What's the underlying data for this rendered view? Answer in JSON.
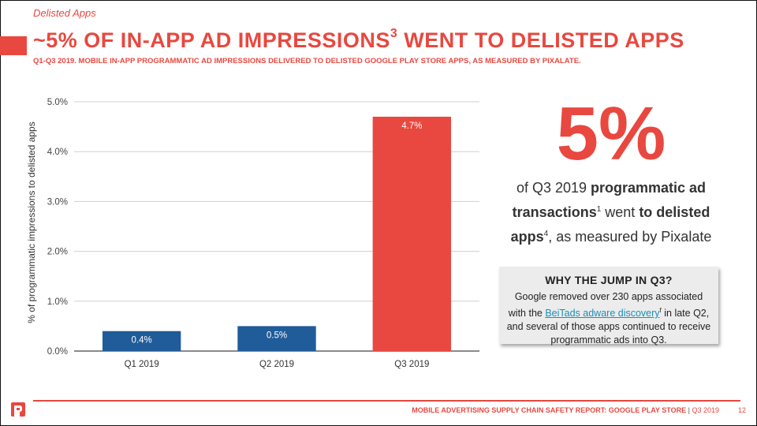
{
  "header": {
    "section": "Delisted Apps",
    "title": "~5% OF IN-APP AD IMPRESSIONS",
    "title_sup": "3",
    "title_tail": " WENT TO DELISTED APPS",
    "subtitle": "Q1-Q3 2019. MOBILE IN-APP PROGRAMMATIC AD IMPRESSIONS DELIVERED TO DELISTED GOOGLE PLAY STORE APPS, AS MEASURED BY PIXALATE."
  },
  "chart_data": {
    "type": "bar",
    "categories": [
      "Q1 2019",
      "Q2 2019",
      "Q3 2019"
    ],
    "values": [
      0.4,
      0.5,
      4.7
    ],
    "value_labels": [
      "0.4%",
      "0.5%",
      "4.7%"
    ],
    "bar_colors": [
      "#1f5c99",
      "#1f5c99",
      "#e8483f"
    ],
    "ylabel": "% of programmatic impressions to delisted apps",
    "ylim": [
      0,
      5.0
    ],
    "yticks": [
      0,
      1,
      2,
      3,
      4,
      5
    ],
    "ytick_labels": [
      "0.0%",
      "1.0%",
      "2.0%",
      "3.0%",
      "4.0%",
      "5.0%"
    ],
    "grid": true
  },
  "stat": {
    "value": "5%",
    "desc_1": "of Q3 2019 ",
    "desc_bold_1": "programmatic ad transactions",
    "desc_sup_1": "1",
    "desc_2": " went ",
    "desc_bold_2": "to delisted apps",
    "desc_sup_2": "4",
    "desc_3": ", as measured by Pixalate"
  },
  "callout": {
    "title": "WHY THE JUMP IN Q3?",
    "body_1": "Google removed over 230 apps associated with the ",
    "link": "BeiTads adware discovery",
    "link_sup": "f",
    "body_2": " in late Q2, and several of those apps continued to receive programmatic ads into Q3."
  },
  "footer": {
    "report": "MOBILE ADVERTISING SUPPLY CHAIN SAFETY REPORT: GOOGLE PLAY STORE",
    "separator": " | ",
    "period": "Q3 2019",
    "page": "12"
  },
  "colors": {
    "accent": "#e8483f",
    "bar_blue": "#1f5c99",
    "link": "#1a8fb8"
  }
}
